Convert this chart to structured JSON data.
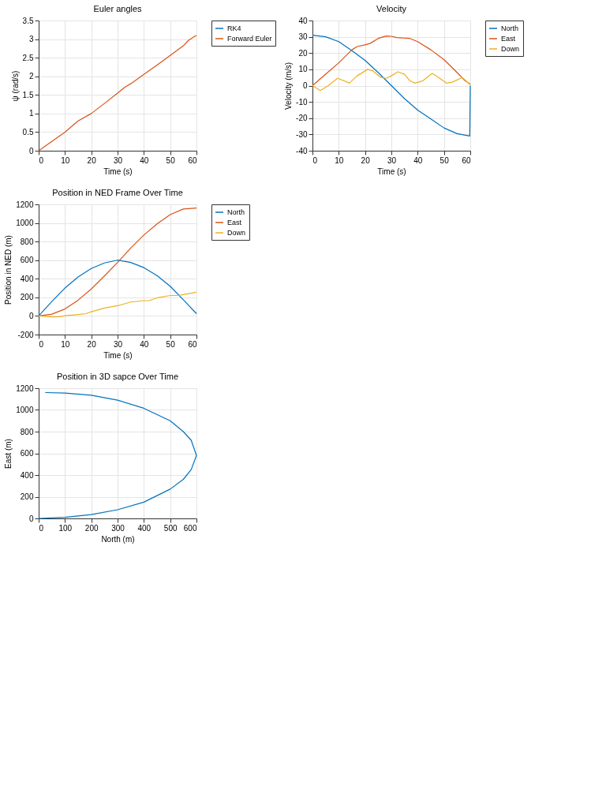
{
  "chart_data": [
    {
      "type": "line",
      "title": "Euler angles",
      "xlabel": "Time (s)",
      "ylabel": "ψ (rad/s)",
      "xlim": [
        0,
        60
      ],
      "xticks": [
        0,
        10,
        20,
        30,
        40,
        50,
        60
      ],
      "ylim": [
        0,
        3.5
      ],
      "yticks": [
        0,
        0.5,
        1,
        1.5,
        2,
        2.5,
        3,
        3.5
      ],
      "grid": true,
      "legend": "top right",
      "line_style": "solid",
      "x": [
        0,
        5,
        10,
        12,
        15,
        20,
        25,
        30,
        33,
        35,
        40,
        45,
        50,
        55,
        57,
        60
      ],
      "series": [
        {
          "name": "RK4",
          "color": "#0072bd",
          "values": [
            null,
            null,
            null,
            null,
            null,
            null,
            null,
            null,
            null,
            null,
            null,
            null,
            null,
            null,
            null,
            null
          ]
        },
        {
          "name": "Forward Euler",
          "color": "#d95319",
          "values": [
            0,
            0.25,
            0.5,
            0.62,
            0.8,
            1.0,
            1.27,
            1.55,
            1.72,
            1.8,
            2.05,
            2.3,
            2.56,
            2.82,
            2.97,
            3.1
          ]
        }
      ]
    },
    {
      "type": "line",
      "title": "Velocity",
      "xlabel": "Time (s)",
      "ylabel": "Velocity (m/s)",
      "xlim": [
        0,
        60
      ],
      "xticks": [
        0,
        10,
        20,
        30,
        40,
        50,
        60
      ],
      "ylim": [
        -40,
        40
      ],
      "yticks": [
        -40,
        -30,
        -20,
        -10,
        0,
        10,
        20,
        30,
        40
      ],
      "grid": true,
      "legend": "top right",
      "line_style": "solid",
      "series": [
        {
          "name": "North",
          "color": "#0072bd",
          "x": [
            0,
            5,
            10,
            15,
            20,
            25,
            30,
            35,
            40,
            45,
            50,
            55,
            59.8,
            60
          ],
          "values": [
            31,
            30,
            27,
            21.5,
            15.5,
            8,
            0,
            -8,
            -15,
            -20.5,
            -26,
            -29.5,
            -31,
            0
          ]
        },
        {
          "name": "East",
          "color": "#d95319",
          "x": [
            0,
            5,
            10,
            15,
            17,
            20,
            22,
            25,
            28,
            30,
            32,
            37,
            40,
            45,
            50,
            55,
            58,
            60
          ],
          "values": [
            0,
            7,
            14,
            22,
            24,
            25,
            26,
            29,
            30.5,
            30.3,
            29.5,
            29,
            27,
            22,
            16,
            8,
            3,
            1
          ]
        },
        {
          "name": "Down",
          "color": "#edb120",
          "x": [
            0,
            3,
            6,
            9.5,
            12,
            14,
            17,
            21,
            23,
            26,
            28,
            30,
            32.5,
            35,
            37,
            39,
            42,
            45.5,
            48,
            51,
            53,
            57,
            60
          ],
          "values": [
            0,
            -3,
            0,
            4.5,
            3,
            1.5,
            6,
            10,
            9,
            5,
            4.5,
            6,
            8.5,
            7,
            3,
            1.5,
            3,
            7.5,
            5,
            1.5,
            2,
            5,
            0.5
          ]
        }
      ]
    },
    {
      "type": "line",
      "title": "Position in NED Frame Over Time",
      "xlabel": "Time (s)",
      "ylabel": "Position in NED (m)",
      "xlim": [
        0,
        60
      ],
      "xticks": [
        0,
        10,
        20,
        30,
        40,
        50,
        60
      ],
      "ylim": [
        -200,
        1200
      ],
      "yticks": [
        -200,
        0,
        200,
        400,
        600,
        800,
        1000,
        1200
      ],
      "grid": true,
      "legend": "top right",
      "line_style": "solid",
      "series": [
        {
          "name": "North",
          "color": "#0072bd",
          "x": [
            0,
            5,
            10,
            15,
            20,
            25,
            30,
            35,
            40,
            45,
            50,
            55,
            60
          ],
          "values": [
            0,
            155,
            300,
            420,
            510,
            570,
            600,
            575,
            520,
            435,
            320,
            175,
            25
          ]
        },
        {
          "name": "East",
          "color": "#d95319",
          "x": [
            0,
            5,
            10,
            15,
            20,
            25,
            30,
            35,
            40,
            45,
            50,
            55,
            60
          ],
          "values": [
            0,
            20,
            75,
            170,
            290,
            430,
            575,
            730,
            870,
            990,
            1090,
            1150,
            1160
          ]
        },
        {
          "name": "Down",
          "color": "#edb120",
          "x": [
            0,
            5,
            8,
            10,
            15,
            18,
            20,
            25,
            30,
            35,
            40,
            42,
            45,
            50,
            53,
            55,
            60
          ],
          "values": [
            0,
            -10,
            -8,
            3,
            15,
            25,
            45,
            85,
            110,
            150,
            165,
            165,
            195,
            220,
            220,
            230,
            255
          ]
        }
      ]
    },
    {
      "type": "line",
      "title": "Position in 3D sapce Over Time",
      "xlabel": "North (m)",
      "ylabel": "East (m)",
      "xlim": [
        0,
        600
      ],
      "xticks": [
        0,
        100,
        200,
        300,
        400,
        500,
        600
      ],
      "ylim": [
        0,
        1200
      ],
      "yticks": [
        0,
        200,
        400,
        600,
        800,
        1000,
        1200
      ],
      "grid": true,
      "line_style": "solid",
      "series": [
        {
          "color": "#0072bd",
          "x": [
            0,
            100,
            200,
            300,
            400,
            500,
            550,
            580,
            600,
            580,
            550,
            500,
            400,
            300,
            200,
            100,
            25
          ],
          "values": [
            0,
            10,
            35,
            80,
            150,
            270,
            360,
            450,
            580,
            720,
            800,
            900,
            1015,
            1090,
            1135,
            1155,
            1160
          ]
        }
      ]
    }
  ]
}
